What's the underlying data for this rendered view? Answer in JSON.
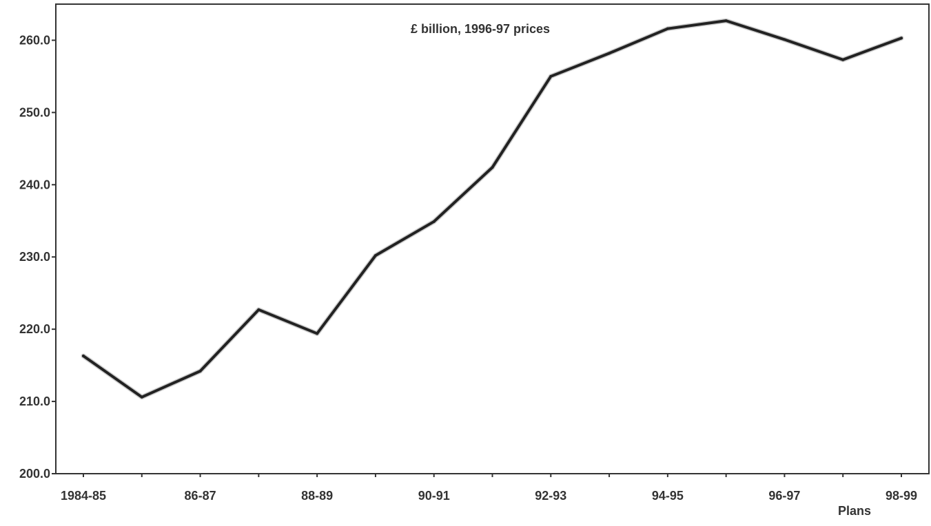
{
  "chart_data": {
    "type": "line",
    "title": "£ billion, 1996-97 prices",
    "x_tick_labels": [
      "1984-85",
      "86-87",
      "88-89",
      "90-91",
      "92-93",
      "94-95",
      "96-97",
      "98-99"
    ],
    "x_note": "Plans",
    "y_tick_labels": [
      "200.0",
      "210.0",
      "220.0",
      "230.0",
      "240.0",
      "250.0",
      "260.0"
    ],
    "ylim": [
      200,
      265
    ],
    "yticks": [
      200,
      210,
      220,
      230,
      240,
      250,
      260
    ],
    "grid": false,
    "categories": [
      "1984-85",
      "1985-86",
      "1986-87",
      "1987-88",
      "1988-89",
      "1989-90",
      "1990-91",
      "1991-92",
      "1992-93",
      "1993-94",
      "1994-95",
      "1995-96",
      "1996-97",
      "1997-98",
      "1998-99"
    ],
    "values": [
      216.3,
      210.6,
      214.2,
      222.7,
      219.4,
      230.2,
      234.9,
      242.4,
      255.0,
      258.2,
      261.6,
      262.7,
      260.1,
      257.3,
      260.3
    ],
    "line_color": "#222222"
  }
}
